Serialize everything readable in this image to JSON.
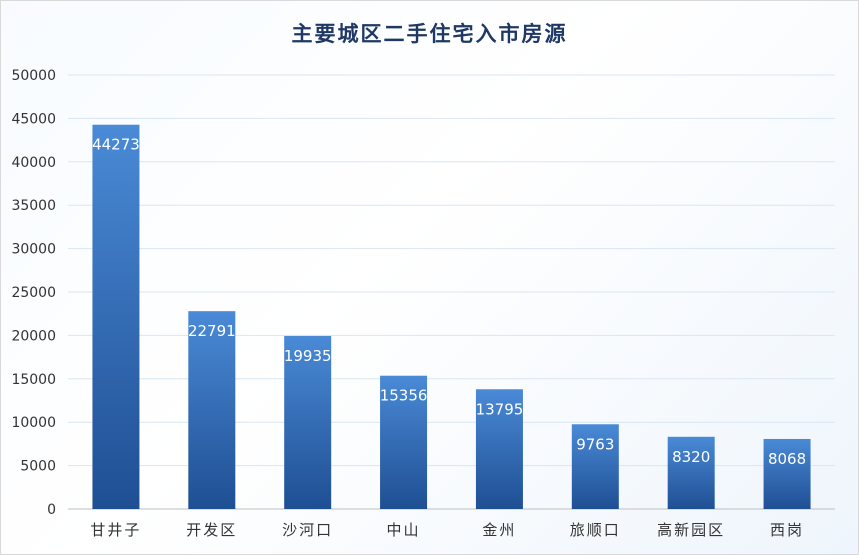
{
  "chart_data": {
    "type": "bar",
    "title": "主要城区二手住宅入市房源",
    "xlabel": "",
    "ylabel": "",
    "categories": [
      "甘井子",
      "开发区",
      "沙河口",
      "中山",
      "金州",
      "旅顺口",
      "高新园区",
      "西岗"
    ],
    "values": [
      44273,
      22791,
      19935,
      15356,
      13795,
      9763,
      8320,
      8068
    ],
    "ylim": [
      0,
      50000
    ],
    "yticks": [
      0,
      5000,
      10000,
      15000,
      20000,
      25000,
      30000,
      35000,
      40000,
      45000,
      50000
    ],
    "grid": true,
    "data_labels": true,
    "legend": "none",
    "colors": {
      "bar_top": "#4a8ad6",
      "bar_bottom": "#1f4f93",
      "grid": "#d9e6f2",
      "axis_text": "#333333",
      "title": "#1f3864",
      "data_label": "#ffffff"
    }
  }
}
